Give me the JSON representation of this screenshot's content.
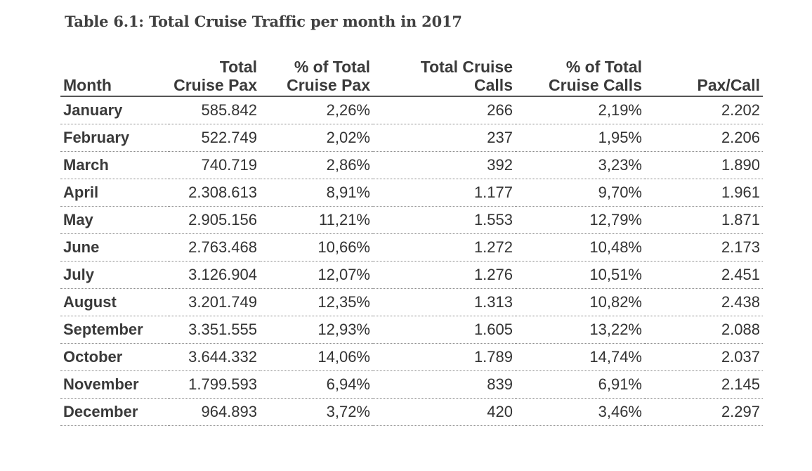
{
  "title": "Table 6.1: Total Cruise Traffic per month in 2017",
  "headers": {
    "month": "Month",
    "total_pax": [
      "Total",
      "Cruise Pax"
    ],
    "pct_pax": [
      "% of Total",
      "Cruise Pax"
    ],
    "total_calls": [
      "Total Cruise",
      "Calls"
    ],
    "pct_calls": [
      "% of Total",
      "Cruise Calls"
    ],
    "pax_call": "Pax/Call"
  },
  "rows": [
    {
      "month": "January",
      "total_pax": "585.842",
      "pct_pax": "2,26%",
      "calls": "266",
      "pct_calls": "2,19%",
      "pax_call": "2.202"
    },
    {
      "month": "February",
      "total_pax": "522.749",
      "pct_pax": "2,02%",
      "calls": "237",
      "pct_calls": "1,95%",
      "pax_call": "2.206"
    },
    {
      "month": "March",
      "total_pax": "740.719",
      "pct_pax": "2,86%",
      "calls": "392",
      "pct_calls": "3,23%",
      "pax_call": "1.890"
    },
    {
      "month": "April",
      "total_pax": "2.308.613",
      "pct_pax": "8,91%",
      "calls": "1.177",
      "pct_calls": "9,70%",
      "pax_call": "1.961"
    },
    {
      "month": "May",
      "total_pax": "2.905.156",
      "pct_pax": "11,21%",
      "calls": "1.553",
      "pct_calls": "12,79%",
      "pax_call": "1.871"
    },
    {
      "month": "June",
      "total_pax": "2.763.468",
      "pct_pax": "10,66%",
      "calls": "1.272",
      "pct_calls": "10,48%",
      "pax_call": "2.173"
    },
    {
      "month": "July",
      "total_pax": "3.126.904",
      "pct_pax": "12,07%",
      "calls": "1.276",
      "pct_calls": "10,51%",
      "pax_call": "2.451"
    },
    {
      "month": "August",
      "total_pax": "3.201.749",
      "pct_pax": "12,35%",
      "calls": "1.313",
      "pct_calls": "10,82%",
      "pax_call": "2.438"
    },
    {
      "month": "September",
      "total_pax": "3.351.555",
      "pct_pax": "12,93%",
      "calls": "1.605",
      "pct_calls": "13,22%",
      "pax_call": "2.088"
    },
    {
      "month": "October",
      "total_pax": "3.644.332",
      "pct_pax": "14,06%",
      "calls": "1.789",
      "pct_calls": "14,74%",
      "pax_call": "2.037"
    },
    {
      "month": "November",
      "total_pax": "1.799.593",
      "pct_pax": "6,94%",
      "calls": "839",
      "pct_calls": "6,91%",
      "pax_call": "2.145"
    },
    {
      "month": "December",
      "total_pax": "964.893",
      "pct_pax": "3,72%",
      "calls": "420",
      "pct_calls": "3,46%",
      "pax_call": "2.297"
    }
  ]
}
